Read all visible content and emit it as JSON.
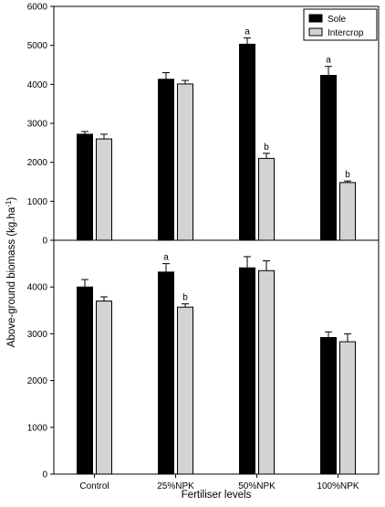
{
  "chart_data": {
    "type": "bar",
    "xlabel": "Fertiliser levels",
    "ylabel_main": "Above-ground biomass (kg.ha",
    "ylabel_sup": "-1",
    "ylabel_close": ")",
    "categories": [
      "Control",
      "25%NPK",
      "50%NPK",
      "100%NPK"
    ],
    "legend": {
      "placement": "top-right",
      "entries": [
        {
          "label": "Sole",
          "color": "#000000"
        },
        {
          "label": "Intercrop",
          "color": "#d3d3d3"
        }
      ]
    },
    "panels": [
      {
        "ylim": [
          0,
          6000
        ],
        "yticks": [
          "0",
          "1000",
          "2000",
          "3000",
          "4000",
          "5000",
          "6000"
        ],
        "series": [
          {
            "name": "Sole",
            "values": [
              2720,
              4130,
              5030,
              4230
            ],
            "errors": [
              70,
              170,
              160,
              230
            ],
            "annotations": [
              "",
              "",
              "a",
              "a"
            ]
          },
          {
            "name": "Intercrop",
            "values": [
              2600,
              4010,
              2100,
              1480
            ],
            "errors": [
              120,
              90,
              130,
              40
            ],
            "annotations": [
              "",
              "",
              "b",
              "b"
            ]
          }
        ]
      },
      {
        "ylim": [
          0,
          5000
        ],
        "yticks": [
          "0",
          "1000",
          "2000",
          "3000",
          "4000"
        ],
        "series": [
          {
            "name": "Sole",
            "values": [
              4000,
              4320,
              4410,
              2920
            ],
            "errors": [
              160,
              180,
              240,
              120
            ],
            "annotations": [
              "",
              "a",
              "",
              ""
            ]
          },
          {
            "name": "Intercrop",
            "values": [
              3700,
              3570,
              4350,
              2830
            ],
            "errors": [
              90,
              70,
              210,
              170
            ],
            "annotations": [
              "",
              "b",
              "",
              ""
            ]
          }
        ]
      }
    ]
  }
}
